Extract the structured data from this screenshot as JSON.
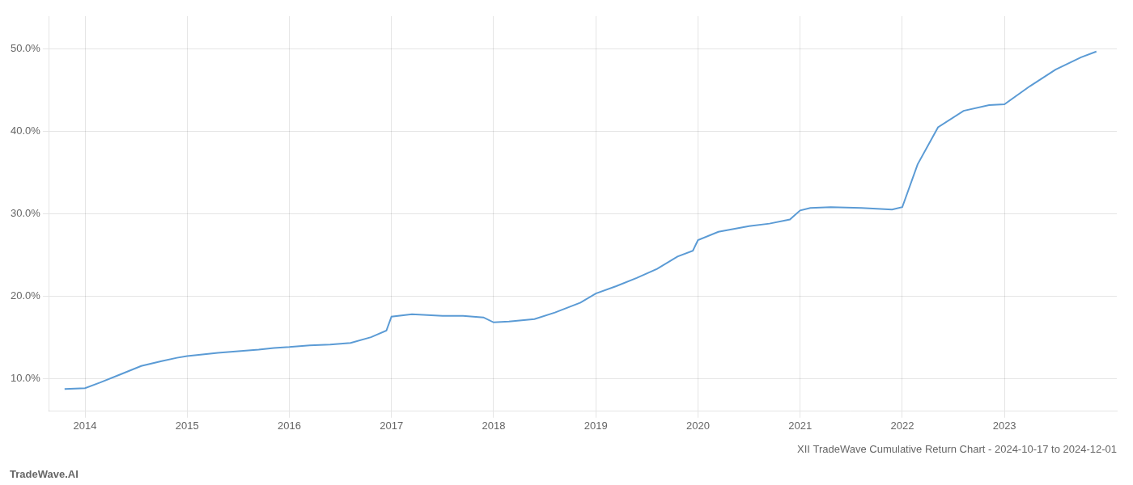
{
  "chart_data": {
    "type": "line",
    "title": "XII TradeWave Cumulative Return Chart - 2024-10-17 to 2024-12-01",
    "annotations": [
      "TradeWave.AI"
    ],
    "color": "#5b9bd5",
    "x": [
      2013.8,
      2014.0,
      2014.15,
      2014.35,
      2014.55,
      2014.75,
      2014.9,
      2015.0,
      2015.15,
      2015.3,
      2015.5,
      2015.7,
      2015.85,
      2016.0,
      2016.2,
      2016.4,
      2016.6,
      2016.8,
      2016.95,
      2017.0,
      2017.2,
      2017.5,
      2017.7,
      2017.9,
      2018.0,
      2018.15,
      2018.4,
      2018.6,
      2018.85,
      2019.0,
      2019.2,
      2019.4,
      2019.6,
      2019.8,
      2019.95,
      2020.0,
      2020.2,
      2020.5,
      2020.7,
      2020.9,
      2021.0,
      2021.1,
      2021.3,
      2021.6,
      2021.9,
      2022.0,
      2022.15,
      2022.35,
      2022.6,
      2022.85,
      2023.0,
      2023.25,
      2023.5,
      2023.75,
      2023.9
    ],
    "values": [
      8.7,
      8.8,
      9.5,
      10.5,
      11.5,
      12.1,
      12.5,
      12.7,
      12.9,
      13.1,
      13.3,
      13.5,
      13.7,
      13.8,
      14.0,
      14.1,
      14.3,
      15.0,
      15.8,
      17.5,
      17.8,
      17.6,
      17.6,
      17.4,
      16.8,
      16.9,
      17.2,
      18.0,
      19.2,
      20.3,
      21.2,
      22.2,
      23.3,
      24.8,
      25.5,
      26.8,
      27.8,
      28.5,
      28.8,
      29.3,
      30.4,
      30.7,
      30.8,
      30.7,
      30.5,
      30.8,
      36.0,
      40.5,
      42.5,
      43.2,
      43.3,
      45.5,
      47.5,
      49.0,
      49.7
    ],
    "xlim": [
      2013.65,
      2024.1
    ],
    "xticks": [
      2014,
      2015,
      2016,
      2017,
      2018,
      2019,
      2020,
      2021,
      2022,
      2023
    ],
    "ylim": [
      6.0,
      54.0
    ],
    "yticks": [
      {
        "value": 10.0,
        "label": "10.0%"
      },
      {
        "value": 20.0,
        "label": "20.0%"
      },
      {
        "value": 30.0,
        "label": "30.0%"
      },
      {
        "value": 40.0,
        "label": "40.0%"
      },
      {
        "value": 50.0,
        "label": "50.0%"
      }
    ],
    "grid": true
  }
}
